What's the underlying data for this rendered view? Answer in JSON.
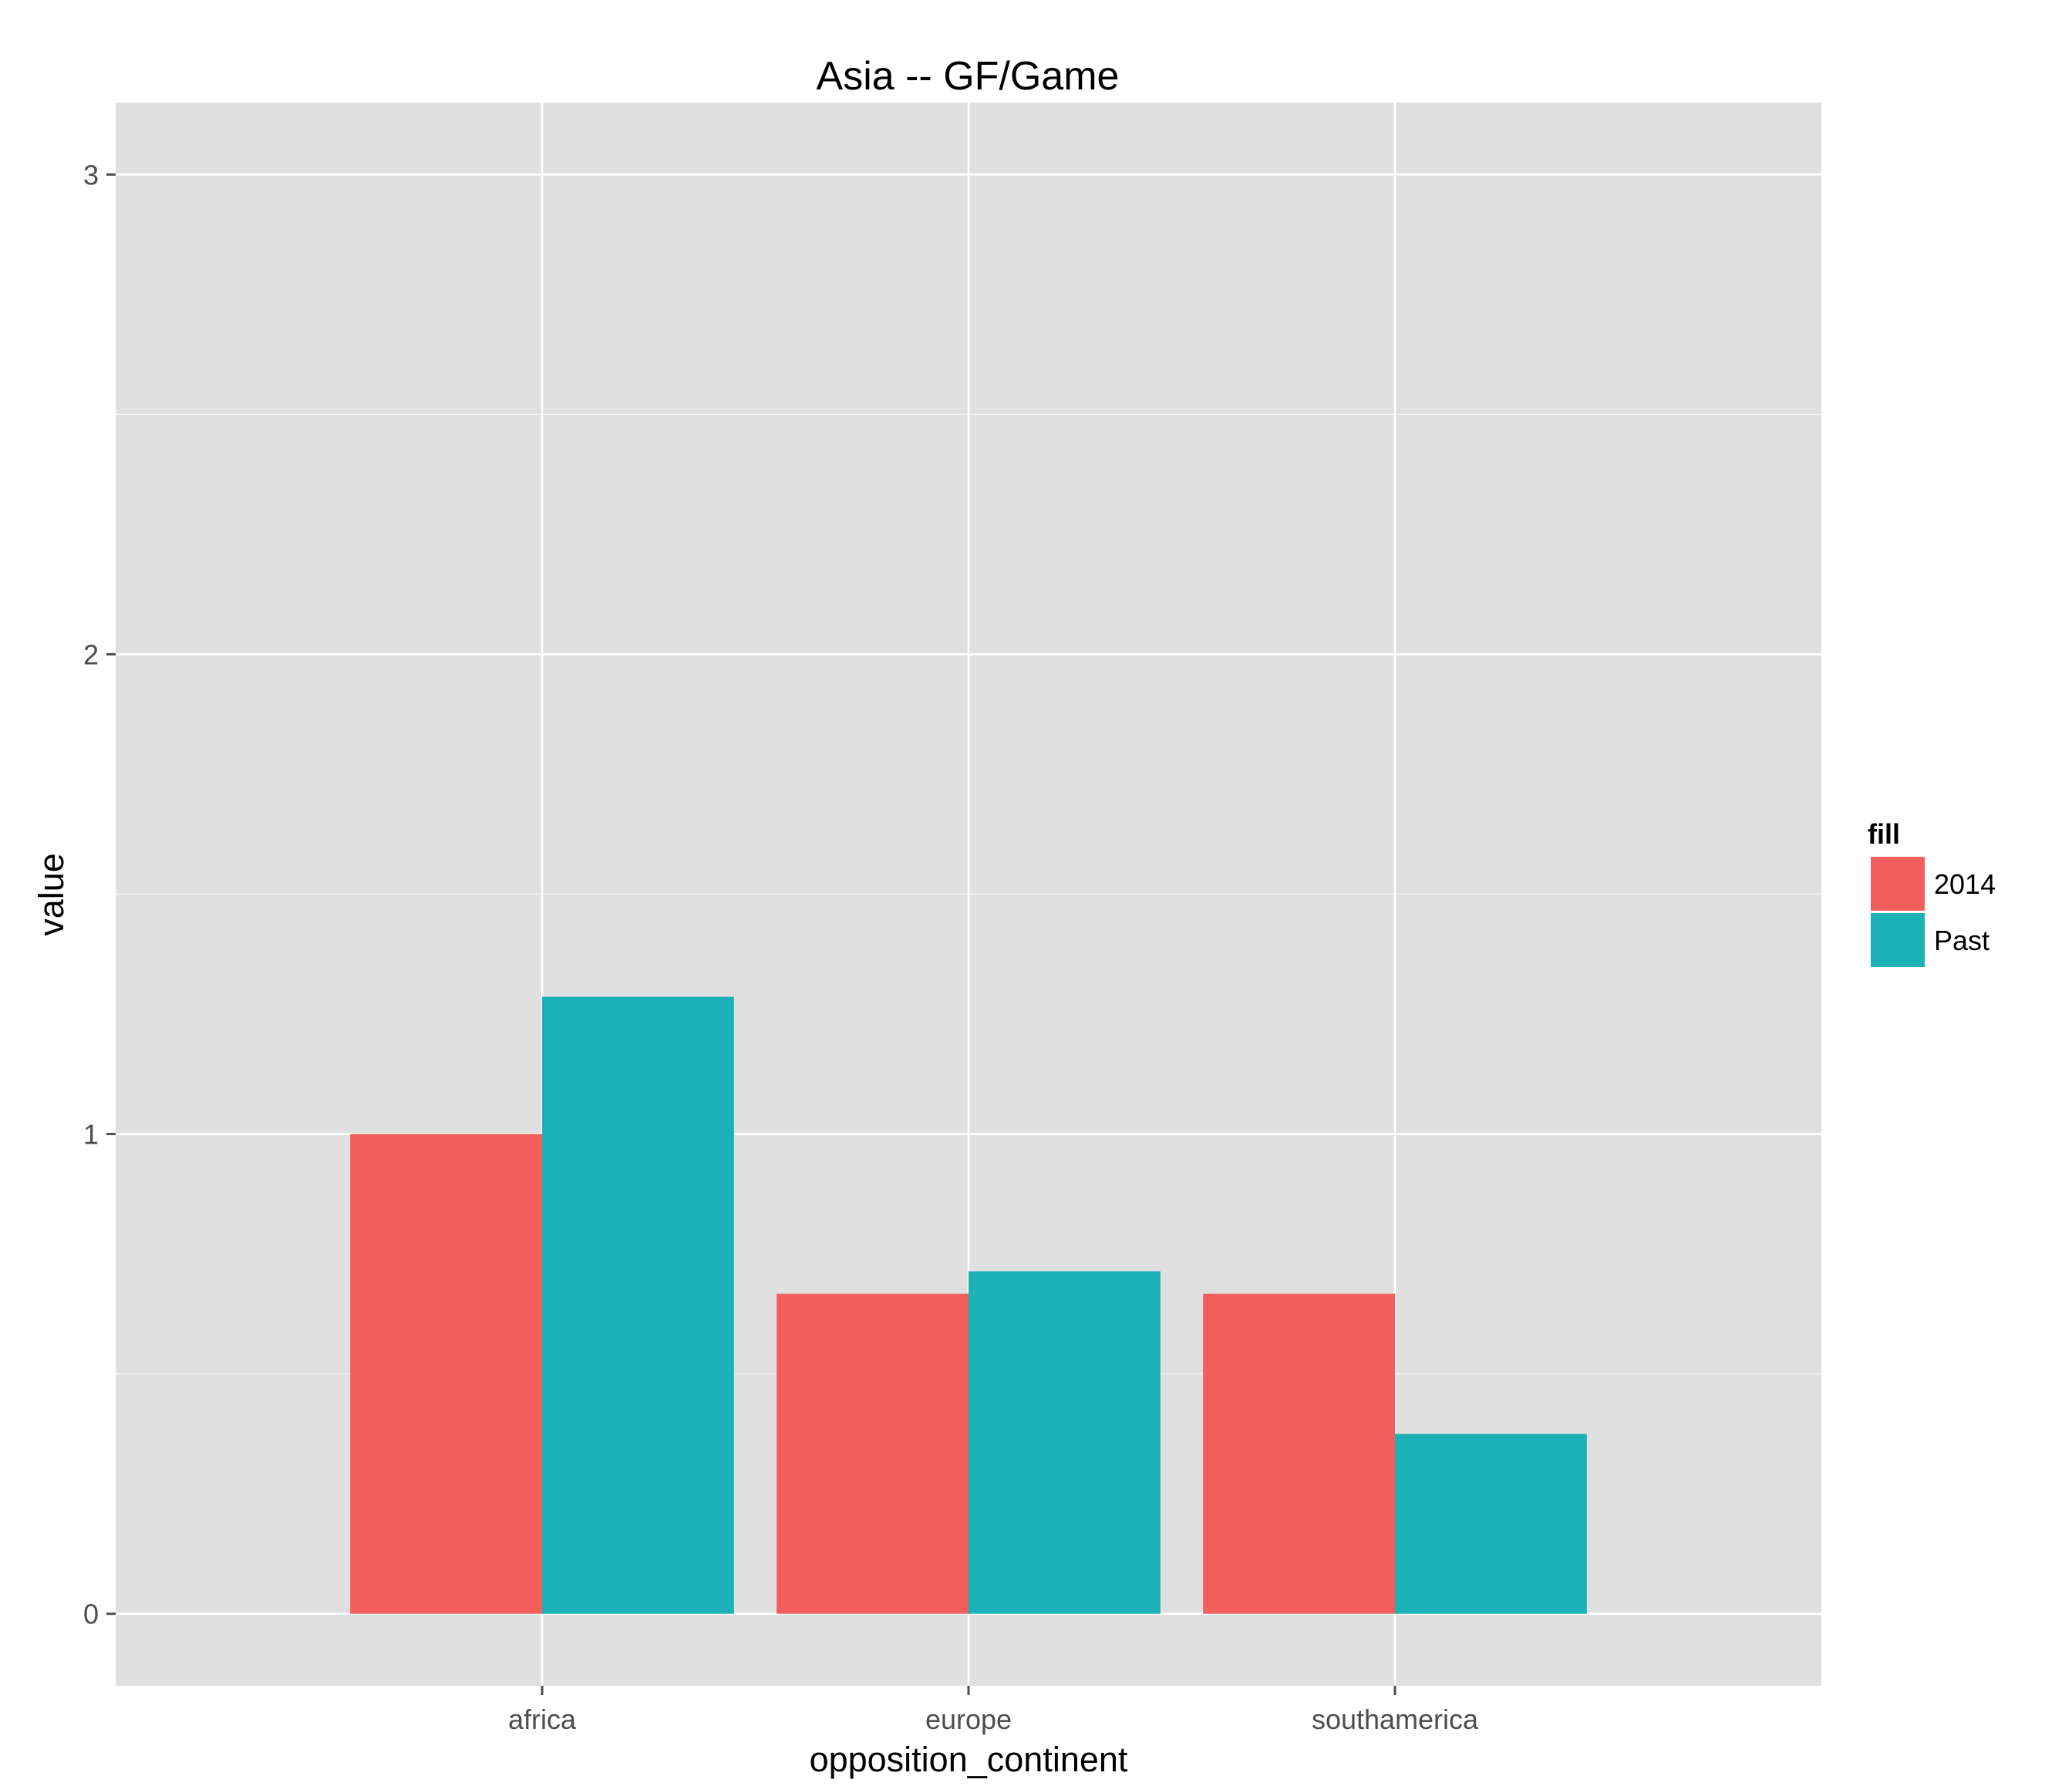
{
  "chart_data": {
    "type": "bar",
    "title": "Asia -- GF/Game",
    "xlabel": "opposition_continent",
    "ylabel": "value",
    "categories": [
      "africa",
      "europe",
      "southamerica"
    ],
    "series": [
      {
        "name": "2014",
        "values": [
          1.0,
          0.667,
          0.667
        ],
        "color": "#F25F5C"
      },
      {
        "name": "Past",
        "values": [
          1.286,
          0.714,
          0.375
        ],
        "color": "#1AB2B6"
      }
    ],
    "ylim": [
      -0.15,
      3.15
    ],
    "y_ticks": [
      0,
      1,
      2,
      3
    ],
    "grid": true,
    "legend": {
      "title": "fill",
      "placement": "right"
    },
    "colors": {
      "panel": "#E0E0E0",
      "grid": "#FFFFFF"
    }
  }
}
